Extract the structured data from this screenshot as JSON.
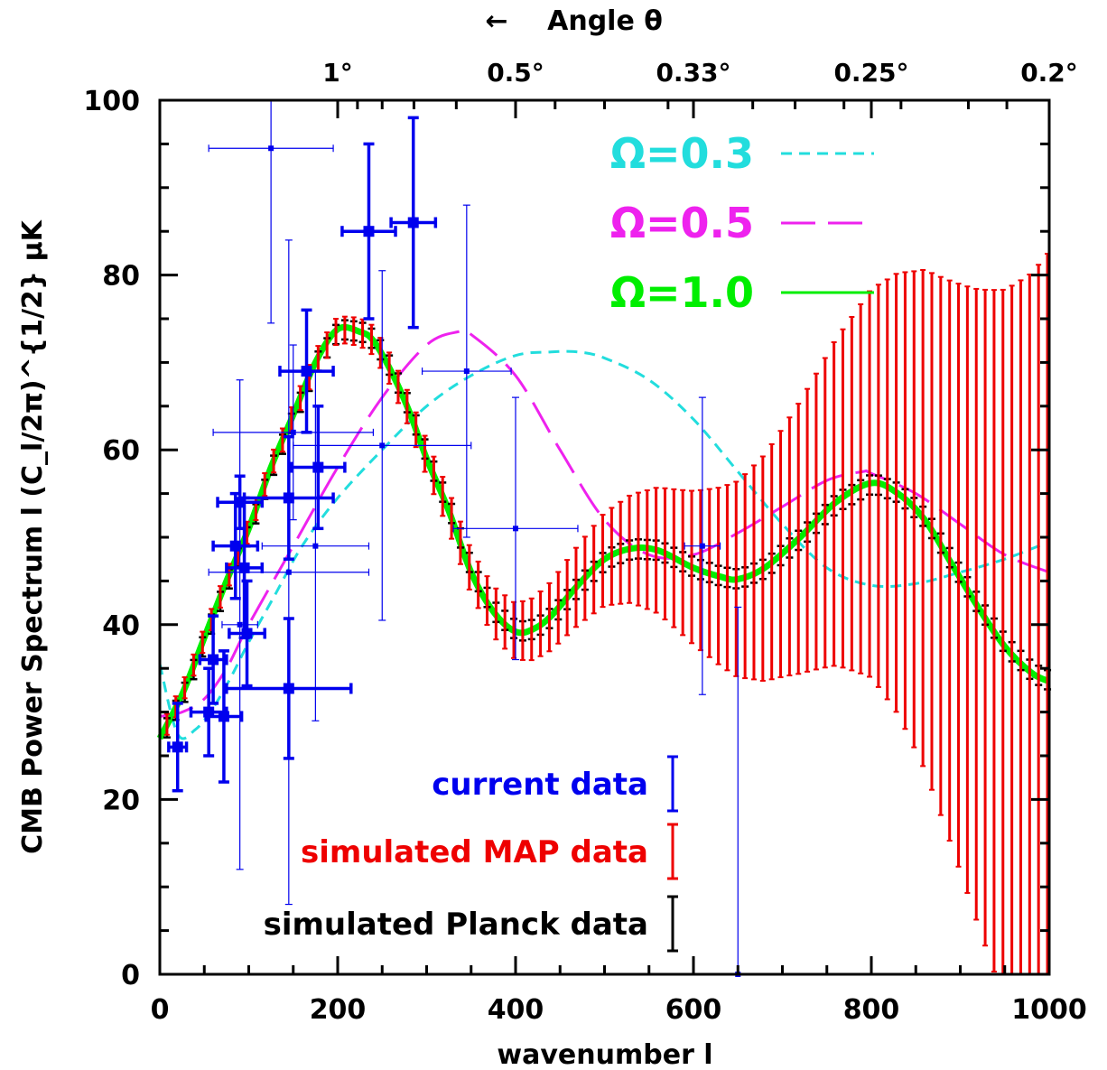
{
  "chart_data": {
    "type": "line",
    "xlabel": "wavenumber l",
    "ylabel": "CMB Power Spectrum l (C_l/2π)^{1/2} μK",
    "top_axis_label": "Angle θ",
    "top_axis_arrow": "←",
    "xlim": [
      0,
      1000
    ],
    "ylim": [
      0,
      100
    ],
    "x_ticks": [
      "0",
      "200",
      "400",
      "600",
      "800",
      "1000"
    ],
    "y_ticks": [
      "0",
      "20",
      "40",
      "60",
      "80",
      "100"
    ],
    "top_ticks": [
      {
        "label": "1°",
        "l": 200
      },
      {
        "label": "0.5°",
        "l": 400
      },
      {
        "label": "0.33°",
        "l": 600
      },
      {
        "label": "0.25°",
        "l": 800
      },
      {
        "label": "0.2°",
        "l": 1000
      }
    ],
    "grid": false,
    "series": [
      {
        "name": "Ω=0.3",
        "color": "#22dddd",
        "style": "dashed-short",
        "x": [
          0,
          20,
          40,
          60,
          80,
          100,
          130,
          160,
          200,
          250,
          300,
          350,
          400,
          440,
          470,
          500,
          550,
          600,
          650,
          700,
          750,
          800,
          850,
          900,
          950,
          1000
        ],
        "y": [
          35.5,
          27.5,
          28,
          30.5,
          34,
          38,
          43.5,
          49,
          54.5,
          60,
          65,
          68.5,
          70.8,
          71.2,
          71.2,
          70.5,
          68,
          63.5,
          57.5,
          51.5,
          46.5,
          44.5,
          44.7,
          46,
          47.5,
          49.5
        ]
      },
      {
        "name": "Ω=0.5",
        "color": "#ee22ee",
        "style": "dashed-long",
        "x": [
          0,
          25,
          50,
          75,
          100,
          150,
          200,
          250,
          300,
          335,
          350,
          400,
          450,
          500,
          550,
          600,
          650,
          700,
          750,
          790,
          800,
          850,
          900,
          950,
          1000
        ],
        "y": [
          29.5,
          30,
          31.5,
          35,
          40,
          49,
          58,
          66,
          72,
          73.5,
          73.2,
          68.5,
          60,
          52,
          48,
          48,
          50.5,
          53.5,
          56.5,
          57.5,
          57.3,
          55,
          51.5,
          48,
          46
        ]
      },
      {
        "name": "Ω=1.0",
        "color": "#00ee00",
        "style": "solid",
        "x": [
          0,
          25,
          50,
          75,
          100,
          125,
          150,
          175,
          200,
          225,
          240,
          260,
          280,
          300,
          325,
          350,
          375,
          400,
          420,
          440,
          470,
          500,
          530,
          560,
          600,
          630,
          650,
          680,
          720,
          760,
          800,
          830,
          860,
          890,
          920,
          950,
          980,
          1000
        ],
        "y": [
          27,
          32,
          38.5,
          45,
          51,
          58,
          64,
          70,
          73.8,
          73.5,
          72.5,
          69,
          64.5,
          59,
          53,
          46,
          41.5,
          39.2,
          39.5,
          41,
          44.5,
          47.5,
          48.7,
          48.5,
          46.5,
          45.5,
          45.2,
          46.5,
          50,
          54,
          56.2,
          55,
          52,
          47,
          42,
          37.5,
          34.5,
          33.5
        ]
      }
    ],
    "error_sets": [
      {
        "name": "current data",
        "color": "#0000ee",
        "points": [
          {
            "x": 20,
            "y": 26,
            "yerr": 5,
            "xerr": 10,
            "bold": true
          },
          {
            "x": 55,
            "y": 30,
            "yerr": 5,
            "xerr": 20,
            "bold": true
          },
          {
            "x": 60,
            "y": 36,
            "yerr": 5,
            "xerr": 15,
            "bold": true
          },
          {
            "x": 72,
            "y": 29.5,
            "yerr": 7.5,
            "xerr": 20,
            "bold": true
          },
          {
            "x": 85,
            "y": 49,
            "yerr": 6,
            "xerr": 25,
            "bold": true
          },
          {
            "x": 90,
            "y": 54,
            "yerr": 3,
            "xerr": 25,
            "bold": true
          },
          {
            "x": 95,
            "y": 46.5,
            "yerr": 8,
            "xerr": 20,
            "bold": true
          },
          {
            "x": 98,
            "y": 39,
            "yerr": 6,
            "xerr": 20,
            "bold": true
          },
          {
            "x": 145,
            "y": 32.7,
            "yerr": 8,
            "xerr": 70,
            "bold": true
          },
          {
            "x": 145,
            "y": 54.5,
            "yerr": 7,
            "xerr": 50,
            "bold": true
          },
          {
            "x": 165,
            "y": 69,
            "yerr": 7,
            "xerr": 30,
            "bold": true
          },
          {
            "x": 178,
            "y": 58,
            "yerr": 7,
            "xerr": 30,
            "bold": true
          },
          {
            "x": 235,
            "y": 85,
            "yerr": 10,
            "xerr": 30,
            "bold": true
          },
          {
            "x": 285,
            "y": 86,
            "yerr": 12,
            "xerr": 25,
            "bold": true
          },
          {
            "x": 90,
            "y": 40,
            "yerr": 28,
            "xerr": 20,
            "bold": false
          },
          {
            "x": 125,
            "y": 94.5,
            "yerr": 20,
            "xerr": 70,
            "bold": false
          },
          {
            "x": 145,
            "y": 46,
            "yerr": 38,
            "xerr": 90,
            "bold": false
          },
          {
            "x": 150,
            "y": 62,
            "yerr": 10,
            "xerr": 90,
            "bold": false
          },
          {
            "x": 175,
            "y": 49,
            "yerr": 20,
            "xerr": 60,
            "bold": false
          },
          {
            "x": 250,
            "y": 60.5,
            "yerr": 20,
            "xerr": 100,
            "bold": false
          },
          {
            "x": 345,
            "y": 69,
            "yerr": 19,
            "xerr": 50,
            "bold": false
          },
          {
            "x": 400,
            "y": 51,
            "yerr": 15,
            "xerr": 70,
            "bold": false
          },
          {
            "x": 610,
            "y": 49,
            "yerr": 17,
            "xerr": 20,
            "bold": false
          },
          {
            "x": 650,
            "y": 0,
            "yerr": 42,
            "xerr": 0,
            "bold": false
          }
        ]
      },
      {
        "name": "simulated MAP data",
        "color": "#ee0000"
      },
      {
        "name": "simulated Planck data",
        "color": "#000000"
      }
    ],
    "legend": {
      "placement": "top-right",
      "entries": [
        "Ω=0.3",
        "Ω=0.5",
        "Ω=1.0"
      ]
    },
    "data_legend": {
      "placement": "bottom-center",
      "entries": [
        "current data",
        "simulated MAP data",
        "simulated Planck data"
      ]
    }
  }
}
